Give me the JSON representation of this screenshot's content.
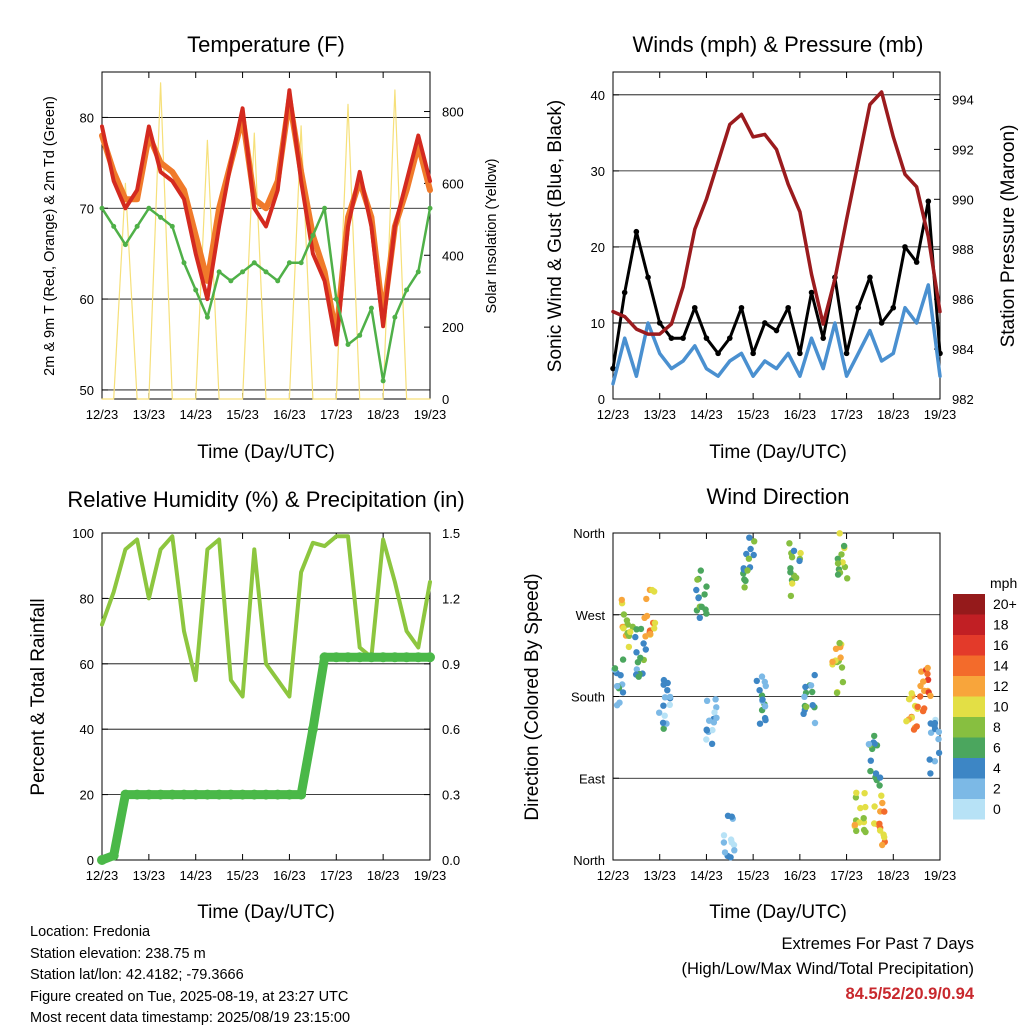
{
  "charts": {
    "temperature": {
      "title": "Temperature (F)",
      "ylabel_left": "2m & 9m T (Red, Orange) & 2m Td (Green)",
      "ylabel_right": "Solar Insolation (Yellow)",
      "xlabel": "Time (Day/UTC)"
    },
    "winds": {
      "title": "Winds (mph) & Pressure (mb)",
      "ylabel_left": "Sonic Wind & Gust (Blue, Black)",
      "ylabel_right": "Station Pressure (Maroon)",
      "xlabel": "Time (Day/UTC)"
    },
    "humidity": {
      "title": "Relative Humidity (%) & Precipitation (in)",
      "ylabel_left": "Percent & Total Rainfall",
      "xlabel": "Time (Day/UTC)"
    },
    "direction": {
      "title": "Wind Direction",
      "ylabel_left": "Direction (Colored By Speed)",
      "xlabel": "Time (Day/UTC)",
      "legend_title": "mph"
    }
  },
  "chart_data": [
    {
      "type": "line",
      "title": "Temperature (F)",
      "x_ticks": [
        "12/23",
        "13/23",
        "14/23",
        "15/23",
        "16/23",
        "17/23",
        "18/23",
        "19/23"
      ],
      "x": [
        12.0,
        12.25,
        12.5,
        12.75,
        13.0,
        13.25,
        13.5,
        13.75,
        14.0,
        14.25,
        14.5,
        14.75,
        15.0,
        15.25,
        15.5,
        15.75,
        16.0,
        16.25,
        16.5,
        16.75,
        17.0,
        17.25,
        17.5,
        17.75,
        18.0,
        18.25,
        18.5,
        18.75,
        19.0
      ],
      "ylim_left": [
        49,
        85
      ],
      "yticks_left": [
        50,
        60,
        70,
        80
      ],
      "ylim_right": [
        0,
        910
      ],
      "yticks_right": [
        0,
        200,
        400,
        600,
        800
      ],
      "series": [
        {
          "key": "t2m",
          "color": "#d42a1f",
          "axis": "left",
          "values": [
            79,
            73,
            70,
            72,
            79,
            74,
            73,
            71,
            65,
            60,
            68,
            75,
            81,
            70,
            68,
            72,
            83,
            73,
            65,
            62,
            55,
            68,
            74,
            68,
            57,
            68,
            73,
            78,
            73
          ]
        },
        {
          "key": "t9m",
          "color": "#f07a2a",
          "axis": "left",
          "values": [
            78,
            74,
            71,
            71,
            78,
            75,
            74,
            72,
            67,
            62,
            70,
            75,
            80,
            71,
            70,
            73,
            82,
            74,
            67,
            63,
            56,
            69,
            73,
            69,
            58,
            68,
            72,
            77,
            72
          ]
        },
        {
          "key": "td2m",
          "color": "#4fb048",
          "axis": "left",
          "values": [
            70,
            68,
            66,
            68,
            70,
            69,
            68,
            64,
            61,
            58,
            63,
            62,
            63,
            64,
            63,
            62,
            64,
            64,
            67,
            70,
            60,
            55,
            56,
            59,
            51,
            58,
            61,
            63,
            70
          ]
        },
        {
          "key": "solar",
          "color": "#f6e07a",
          "axis": "right",
          "values": [
            0,
            0,
            600,
            0,
            0,
            880,
            0,
            0,
            0,
            720,
            0,
            0,
            0,
            740,
            0,
            0,
            0,
            760,
            0,
            0,
            0,
            820,
            0,
            0,
            0,
            860,
            0,
            0,
            0
          ]
        }
      ]
    },
    {
      "type": "line",
      "title": "Winds (mph) & Pressure (mb)",
      "x_ticks": [
        "12/23",
        "13/23",
        "14/23",
        "15/23",
        "16/23",
        "17/23",
        "18/23",
        "19/23"
      ],
      "x": [
        12.0,
        12.25,
        12.5,
        12.75,
        13.0,
        13.25,
        13.5,
        13.75,
        14.0,
        14.25,
        14.5,
        14.75,
        15.0,
        15.25,
        15.5,
        15.75,
        16.0,
        16.25,
        16.5,
        16.75,
        17.0,
        17.25,
        17.5,
        17.75,
        18.0,
        18.25,
        18.5,
        18.75,
        19.0
      ],
      "ylim_left": [
        0,
        43
      ],
      "yticks_left": [
        0,
        10,
        20,
        30,
        40
      ],
      "ylim_right": [
        982,
        995.1
      ],
      "yticks_right": [
        982,
        984,
        986,
        988,
        990,
        992,
        994
      ],
      "series": [
        {
          "key": "sonic_wind",
          "color": "#4a90d0",
          "axis": "left",
          "values": [
            2,
            8,
            3,
            10,
            6,
            4,
            5,
            7,
            4,
            3,
            5,
            6,
            3,
            5,
            4,
            6,
            3,
            8,
            4,
            10,
            3,
            6,
            9,
            5,
            6,
            12,
            10,
            15,
            3
          ]
        },
        {
          "key": "gust",
          "color": "#000000",
          "axis": "left",
          "values": [
            4,
            14,
            22,
            16,
            10,
            8,
            8,
            12,
            8,
            6,
            8,
            12,
            6,
            10,
            9,
            12,
            6,
            14,
            8,
            16,
            6,
            12,
            16,
            10,
            12,
            20,
            18,
            26,
            6
          ]
        },
        {
          "key": "pressure",
          "color": "#9b1b1e",
          "axis": "right",
          "values": [
            985.5,
            985.3,
            984.8,
            984.6,
            984.6,
            985.0,
            986.5,
            988.8,
            990.0,
            991.5,
            993.0,
            993.4,
            992.5,
            992.6,
            992.0,
            990.6,
            989.5,
            987.0,
            985.0,
            986.8,
            989.2,
            991.5,
            993.8,
            994.3,
            992.5,
            991.0,
            990.5,
            988.5,
            985.5
          ]
        }
      ]
    },
    {
      "type": "line",
      "title": "Relative Humidity (%) & Precipitation (in)",
      "x_ticks": [
        "12/23",
        "13/23",
        "14/23",
        "15/23",
        "16/23",
        "17/23",
        "18/23",
        "19/23"
      ],
      "x": [
        12.0,
        12.25,
        12.5,
        12.75,
        13.0,
        13.25,
        13.5,
        13.75,
        14.0,
        14.25,
        14.5,
        14.75,
        15.0,
        15.25,
        15.5,
        15.75,
        16.0,
        16.25,
        16.5,
        16.75,
        17.0,
        17.25,
        17.5,
        17.75,
        18.0,
        18.25,
        18.5,
        18.75,
        19.0
      ],
      "ylim_left": [
        0,
        100
      ],
      "yticks_left": [
        0,
        20,
        40,
        60,
        80,
        100
      ],
      "ylim_right": [
        0,
        1.5
      ],
      "yticks_right": [
        "0.0",
        "0.3",
        "0.6",
        "0.9",
        "1.2",
        "1.5"
      ],
      "series": [
        {
          "key": "rh",
          "color": "#8dc63f",
          "axis": "left",
          "values": [
            72,
            82,
            95,
            98,
            80,
            95,
            99,
            70,
            55,
            95,
            98,
            55,
            50,
            95,
            60,
            55,
            50,
            88,
            97,
            96,
            99,
            99,
            65,
            62,
            98,
            85,
            70,
            65,
            85
          ]
        },
        {
          "key": "precip_total",
          "color": "#4ab848",
          "axis": "right",
          "values": [
            0.0,
            0.02,
            0.3,
            0.3,
            0.3,
            0.3,
            0.3,
            0.3,
            0.3,
            0.3,
            0.3,
            0.3,
            0.3,
            0.3,
            0.3,
            0.3,
            0.3,
            0.3,
            0.6,
            0.93,
            0.93,
            0.93,
            0.93,
            0.93,
            0.93,
            0.93,
            0.93,
            0.93,
            0.93
          ]
        }
      ]
    },
    {
      "type": "scatter",
      "title": "Wind Direction",
      "x_ticks": [
        "12/23",
        "13/23",
        "14/23",
        "15/23",
        "16/23",
        "17/23",
        "18/23",
        "19/23"
      ],
      "ylim": [
        0,
        360
      ],
      "y_tick_labels": [
        "North",
        "East",
        "South",
        "West",
        "North"
      ],
      "y_tick_values": [
        0,
        90,
        180,
        270,
        360
      ],
      "color_scale": [
        {
          "label": "0",
          "color": "#b7e2f6"
        },
        {
          "label": "2",
          "color": "#7cb9e6"
        },
        {
          "label": "4",
          "color": "#3d86c5"
        },
        {
          "label": "6",
          "color": "#4ba65e"
        },
        {
          "label": "8",
          "color": "#87bf40"
        },
        {
          "label": "10",
          "color": "#e3df45"
        },
        {
          "label": "12",
          "color": "#f8a53b"
        },
        {
          "label": "14",
          "color": "#f36b2b"
        },
        {
          "label": "16",
          "color": "#e33a2a"
        },
        {
          "label": "18",
          "color": "#c11f24"
        },
        {
          "label": "20+",
          "color": "#951a1b"
        }
      ],
      "clusters": [
        {
          "x": 12.3,
          "dir": 260,
          "spd": 10
        },
        {
          "x": 12.1,
          "dir": 195,
          "spd": 4
        },
        {
          "x": 12.8,
          "dir": 275,
          "spd": 12
        },
        {
          "x": 12.6,
          "dir": 230,
          "spd": 5
        },
        {
          "x": 13.1,
          "dir": 170,
          "spd": 3
        },
        {
          "x": 13.9,
          "dir": 295,
          "spd": 6
        },
        {
          "x": 14.1,
          "dir": 150,
          "spd": 2
        },
        {
          "x": 14.5,
          "dir": 20,
          "spd": 3
        },
        {
          "x": 14.9,
          "dir": 330,
          "spd": 6
        },
        {
          "x": 15.2,
          "dir": 180,
          "spd": 4
        },
        {
          "x": 15.9,
          "dir": 320,
          "spd": 7
        },
        {
          "x": 16.2,
          "dir": 180,
          "spd": 5
        },
        {
          "x": 16.9,
          "dir": 340,
          "spd": 8
        },
        {
          "x": 16.8,
          "dir": 210,
          "spd": 10
        },
        {
          "x": 17.3,
          "dir": 55,
          "spd": 9
        },
        {
          "x": 17.7,
          "dir": 45,
          "spd": 12
        },
        {
          "x": 17.6,
          "dir": 110,
          "spd": 5
        },
        {
          "x": 18.4,
          "dir": 170,
          "spd": 12
        },
        {
          "x": 18.7,
          "dir": 185,
          "spd": 14
        },
        {
          "x": 18.9,
          "dir": 125,
          "spd": 3
        }
      ]
    }
  ],
  "info": {
    "location": "Location: Fredonia",
    "elevation": "Station elevation: 238.75 m",
    "latlon": "Station lat/lon: 42.4182; -79.3666",
    "created": "Figure created on Tue, 2025-08-19, at 23:27 UTC",
    "recent": "Most recent data timestamp: 2025/08/19 23:15:00"
  },
  "extremes": {
    "title": "Extremes For Past 7 Days",
    "subtitle": "(High/Low/Max Wind/Total Precipitation)",
    "values": "84.5/52/20.9/0.94"
  }
}
